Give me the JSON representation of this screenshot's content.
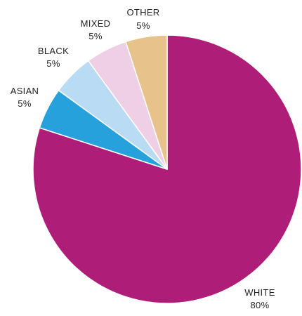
{
  "chart_data": {
    "type": "pie",
    "title": "",
    "start_angle_deg": 0,
    "direction": "clockwise",
    "slices": [
      {
        "label": "WHITE",
        "value": 80,
        "value_label": "80%",
        "color": "#ae1d78"
      },
      {
        "label": "ASIAN",
        "value": 5,
        "value_label": "5%",
        "color": "#27a1dc"
      },
      {
        "label": "BLACK",
        "value": 5,
        "value_label": "5%",
        "color": "#b9dbf3"
      },
      {
        "label": "MIXED",
        "value": 5,
        "value_label": "5%",
        "color": "#efcfe5"
      },
      {
        "label": "OTHER",
        "value": 5,
        "value_label": "5%",
        "color": "#e7c38b"
      }
    ]
  }
}
